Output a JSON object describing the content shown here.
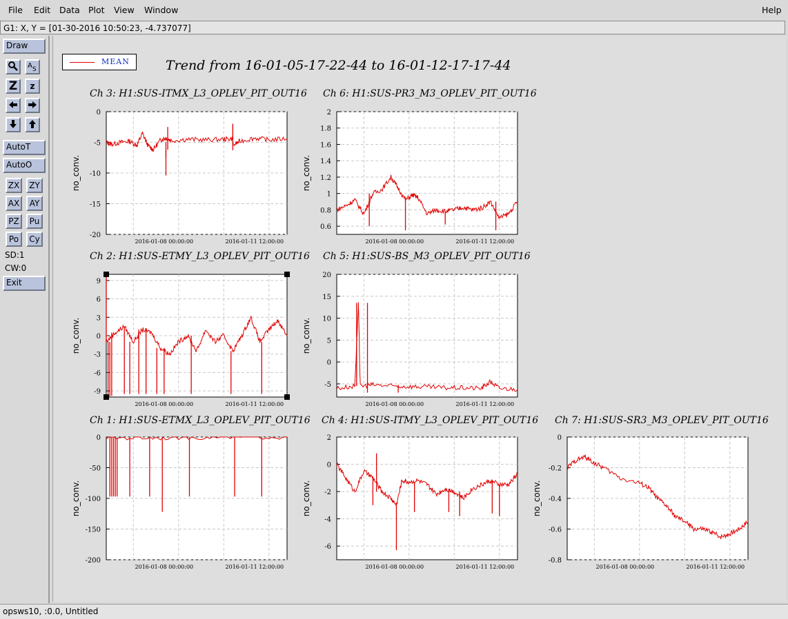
{
  "menu": {
    "file": "File",
    "edit": "Edit",
    "data": "Data",
    "plot": "Plot",
    "view": "View",
    "window": "Window",
    "help": "Help"
  },
  "coords_text": "G1: X, Y = [01-30-2016 10:50:23, -4.737077]",
  "sidebar": {
    "draw": "Draw",
    "autot": "AutoT",
    "autoo": "AutoO",
    "icons": {
      "zoom": "Z",
      "zoom_small": "z",
      "zx": "ZX",
      "zy": "ZY",
      "ax": "AX",
      "ay": "AY",
      "pz": "PZ",
      "pu": "Pu",
      "po": "Po",
      "cy": "Cy"
    },
    "sd": "SD:1",
    "cw": "CW:0",
    "exit": "Exit"
  },
  "status": "opsws10, :0.0, Untitled",
  "legend": {
    "label": "MEAN",
    "color": "#e00000"
  },
  "main_title": "Trend from 16-01-05-17-22-44 to 16-01-12-17-17-44",
  "chart_data": [
    {
      "type": "line",
      "title": "Ch 3: H1:SUS-ITMX_L3_OPLEV_PIT_OUT16",
      "ylabel": "no_conv.",
      "ylim": [
        -20,
        0
      ],
      "yticks": [
        "0",
        "-5",
        "-10",
        "-15",
        "-20"
      ],
      "xticks": [
        "2016-01-08 00:00:00",
        "2016-01-11 12:00:00"
      ],
      "series": [
        {
          "x": [
            0,
            0.03,
            0.08,
            0.13,
            0.17,
            0.2,
            0.23,
            0.26,
            0.3,
            0.33,
            0.36,
            0.45,
            0.55,
            0.65,
            0.7,
            0.7,
            0.7,
            0.74,
            0.82,
            0.9,
            1.0
          ],
          "y": [
            -5,
            -5.3,
            -5,
            -4.8,
            -5.5,
            -3.5,
            -5.5,
            -6.2,
            -4.6,
            -4.3,
            -4.7,
            -4.5,
            -4.6,
            -4.5,
            -4.4,
            -2,
            -5.5,
            -4.8,
            -4.3,
            -4.6,
            -4.4
          ]
        }
      ]
    },
    {
      "type": "line",
      "title": "Ch 6: H1:SUS-PR3_M3_OPLEV_PIT_OUT16",
      "ylabel": "no_conv.",
      "ylim": [
        0.5,
        2
      ],
      "yticks": [
        "2",
        "1.8",
        "1.6",
        "1.4",
        "1.2",
        "1",
        "0.8",
        "0.6"
      ],
      "xticks": [
        "2016-01-08 00:00:00",
        "2016-01-11 12:00:00"
      ],
      "series": [
        {
          "x": [
            0,
            0.05,
            0.1,
            0.15,
            0.2,
            0.25,
            0.3,
            0.33,
            0.38,
            0.42,
            0.45,
            0.5,
            0.55,
            0.6,
            0.65,
            0.7,
            0.75,
            0.8,
            0.85,
            0.9,
            0.95,
            1.0
          ],
          "y": [
            0.8,
            0.85,
            0.92,
            0.75,
            1.0,
            1.05,
            1.2,
            1.1,
            0.92,
            0.98,
            0.95,
            0.75,
            0.8,
            0.78,
            0.8,
            0.83,
            0.8,
            0.82,
            0.9,
            0.7,
            0.75,
            0.9
          ]
        }
      ]
    },
    {
      "type": "line",
      "title": "Ch 2: H1:SUS-ETMY_L3_OPLEV_PIT_OUT16",
      "ylabel": "no_conv.",
      "ylim": [
        -10,
        10
      ],
      "yticks": [
        "9",
        "6",
        "3",
        "0",
        "-3",
        "-6",
        "-9"
      ],
      "xticks": [
        "2016-01-08 00:00:00",
        "2016-01-11 12:00:00"
      ],
      "series": [
        {
          "x": [
            0,
            0.05,
            0.1,
            0.15,
            0.2,
            0.25,
            0.3,
            0.35,
            0.4,
            0.45,
            0.5,
            0.55,
            0.6,
            0.65,
            0.7,
            0.75,
            0.8,
            0.85,
            0.9,
            0.95,
            1.0
          ],
          "y": [
            -1,
            0.5,
            1.5,
            -1,
            1,
            0.5,
            -2,
            -3,
            -1,
            0,
            -2.5,
            1,
            -1,
            0,
            -2.5,
            0,
            3,
            -1,
            1,
            2.5,
            0
          ]
        }
      ]
    },
    {
      "type": "line",
      "title": "Ch 5: H1:SUS-BS_M3_OPLEV_PIT_OUT16",
      "ylabel": "no_conv.",
      "ylim": [
        -8,
        20
      ],
      "yticks": [
        "20",
        "15",
        "10",
        "5",
        "0",
        "-5"
      ],
      "xticks": [
        "2016-01-08 00:00:00",
        "2016-01-11 12:00:00"
      ],
      "series": [
        {
          "x": [
            0,
            0.1,
            0.12,
            0.13,
            0.2,
            0.3,
            0.4,
            0.5,
            0.6,
            0.7,
            0.8,
            0.85,
            0.9,
            1.0
          ],
          "y": [
            -6,
            -5.5,
            13.5,
            -5.5,
            -5.2,
            -5.5,
            -5.6,
            -5.7,
            -5.9,
            -5.9,
            -6,
            -4.5,
            -6,
            -6.2
          ]
        }
      ]
    },
    {
      "type": "line",
      "title": "Ch 1: H1:SUS-ETMX_L3_OPLEV_PIT_OUT16",
      "ylabel": "no_conv.",
      "ylim": [
        -200,
        0
      ],
      "yticks": [
        "0",
        "-50",
        "-100",
        "-150",
        "-200"
      ],
      "xticks": [
        "2016-01-08 00:00:00",
        "2016-01-11 12:00:00"
      ],
      "series": [
        {
          "x": [
            0,
            0.2,
            0.4,
            0.6,
            0.8,
            1.0
          ],
          "y": [
            -1,
            -1,
            -0.5,
            0,
            0.5,
            0
          ]
        }
      ]
    },
    {
      "type": "line",
      "title": "Ch 4: H1:SUS-ITMY_L3_OPLEV_PIT_OUT16",
      "ylabel": "no_conv.",
      "ylim": [
        -7,
        2
      ],
      "yticks": [
        "2",
        "0",
        "-2",
        "-4",
        "-6"
      ],
      "xticks": [
        "2016-01-08 00:00:00",
        "2016-01-11 12:00:00"
      ],
      "series": [
        {
          "x": [
            0,
            0.05,
            0.1,
            0.15,
            0.2,
            0.25,
            0.3,
            0.33,
            0.36,
            0.4,
            0.45,
            0.5,
            0.55,
            0.6,
            0.65,
            0.7,
            0.75,
            0.8,
            0.85,
            0.9,
            0.95,
            1.0
          ],
          "y": [
            0,
            -1,
            -2,
            -0.5,
            -1,
            -2,
            -2.5,
            -3,
            -1.2,
            -1.3,
            -1.2,
            -1.5,
            -2.2,
            -1.8,
            -2,
            -2.5,
            -1.8,
            -1.5,
            -1.2,
            -1.5,
            -1.5,
            -0.7
          ]
        }
      ]
    },
    {
      "type": "line",
      "title": "Ch 7: H1:SUS-SR3_M3_OPLEV_PIT_OUT16",
      "ylabel": "no_conv.",
      "ylim": [
        -0.8,
        0
      ],
      "yticks": [
        "0",
        "-0.2",
        "-0.4",
        "-0.6",
        "-0.8"
      ],
      "xticks": [
        "2016-01-08 00:00:00",
        "2016-01-11 12:00:00"
      ],
      "series": [
        {
          "x": [
            0,
            0.05,
            0.1,
            0.15,
            0.2,
            0.3,
            0.4,
            0.45,
            0.5,
            0.55,
            0.6,
            0.65,
            0.7,
            0.75,
            0.8,
            0.85,
            0.9,
            0.95,
            1.0
          ],
          "y": [
            -0.2,
            -0.15,
            -0.13,
            -0.17,
            -0.2,
            -0.27,
            -0.3,
            -0.33,
            -0.4,
            -0.45,
            -0.52,
            -0.55,
            -0.6,
            -0.6,
            -0.62,
            -0.65,
            -0.63,
            -0.6,
            -0.55
          ]
        }
      ]
    }
  ]
}
